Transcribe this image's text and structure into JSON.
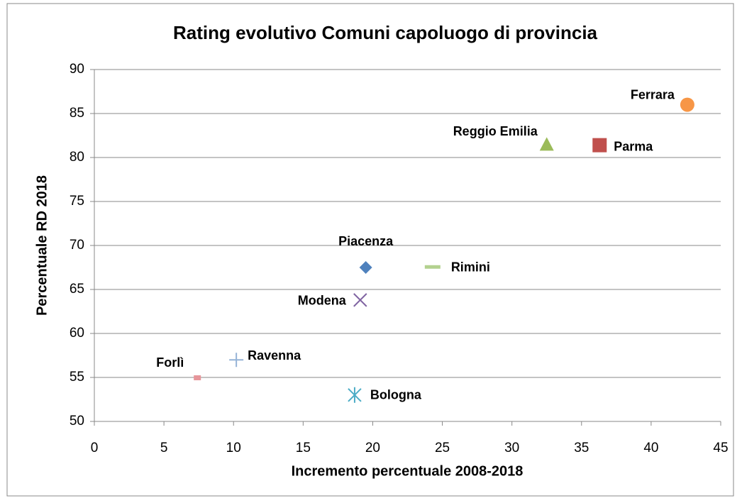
{
  "chart_data": {
    "type": "scatter",
    "title": "Rating evolutivo Comuni capoluogo di provincia",
    "x_label": "Incremento percentuale 2008-2018",
    "y_label": "Percentuale RD 2018",
    "xlim": [
      0,
      45
    ],
    "xticks": [
      0,
      5,
      10,
      15,
      20,
      25,
      30,
      35,
      40,
      45
    ],
    "ylim": [
      50,
      90
    ],
    "yticks": [
      50,
      55,
      60,
      65,
      70,
      75,
      80,
      85,
      90
    ],
    "grid": true,
    "series": [
      {
        "name": "Piacenza",
        "color": "#4f81bd",
        "marker": "diamond",
        "x": [
          19.5
        ],
        "y": [
          67.5
        ]
      },
      {
        "name": "Parma",
        "color": "#c0504d",
        "marker": "square",
        "x": [
          36.3
        ],
        "y": [
          81.4
        ]
      },
      {
        "name": "Reggio Emilia",
        "color": "#9bbb59",
        "marker": "triangle",
        "x": [
          32.5
        ],
        "y": [
          81.5
        ]
      },
      {
        "name": "Modena",
        "color": "#8064a2",
        "marker": "x",
        "x": [
          19.1
        ],
        "y": [
          63.8
        ]
      },
      {
        "name": "Bologna",
        "color": "#4bacc6",
        "marker": "star",
        "x": [
          18.7
        ],
        "y": [
          53.0
        ]
      },
      {
        "name": "Ferrara",
        "color": "#f79646",
        "marker": "circle",
        "x": [
          42.6
        ],
        "y": [
          86.0
        ]
      },
      {
        "name": "Forlì",
        "color": "#e6959a",
        "marker": "rect",
        "x": [
          7.4
        ],
        "y": [
          55.0
        ]
      },
      {
        "name": "Ravenna",
        "color": "#95b3d7",
        "marker": "plus",
        "x": [
          10.2
        ],
        "y": [
          57.0
        ]
      },
      {
        "name": "Rimini",
        "color": "#b3d18f",
        "marker": "dash",
        "x": [
          24.3
        ],
        "y": [
          67.6
        ]
      }
    ]
  }
}
